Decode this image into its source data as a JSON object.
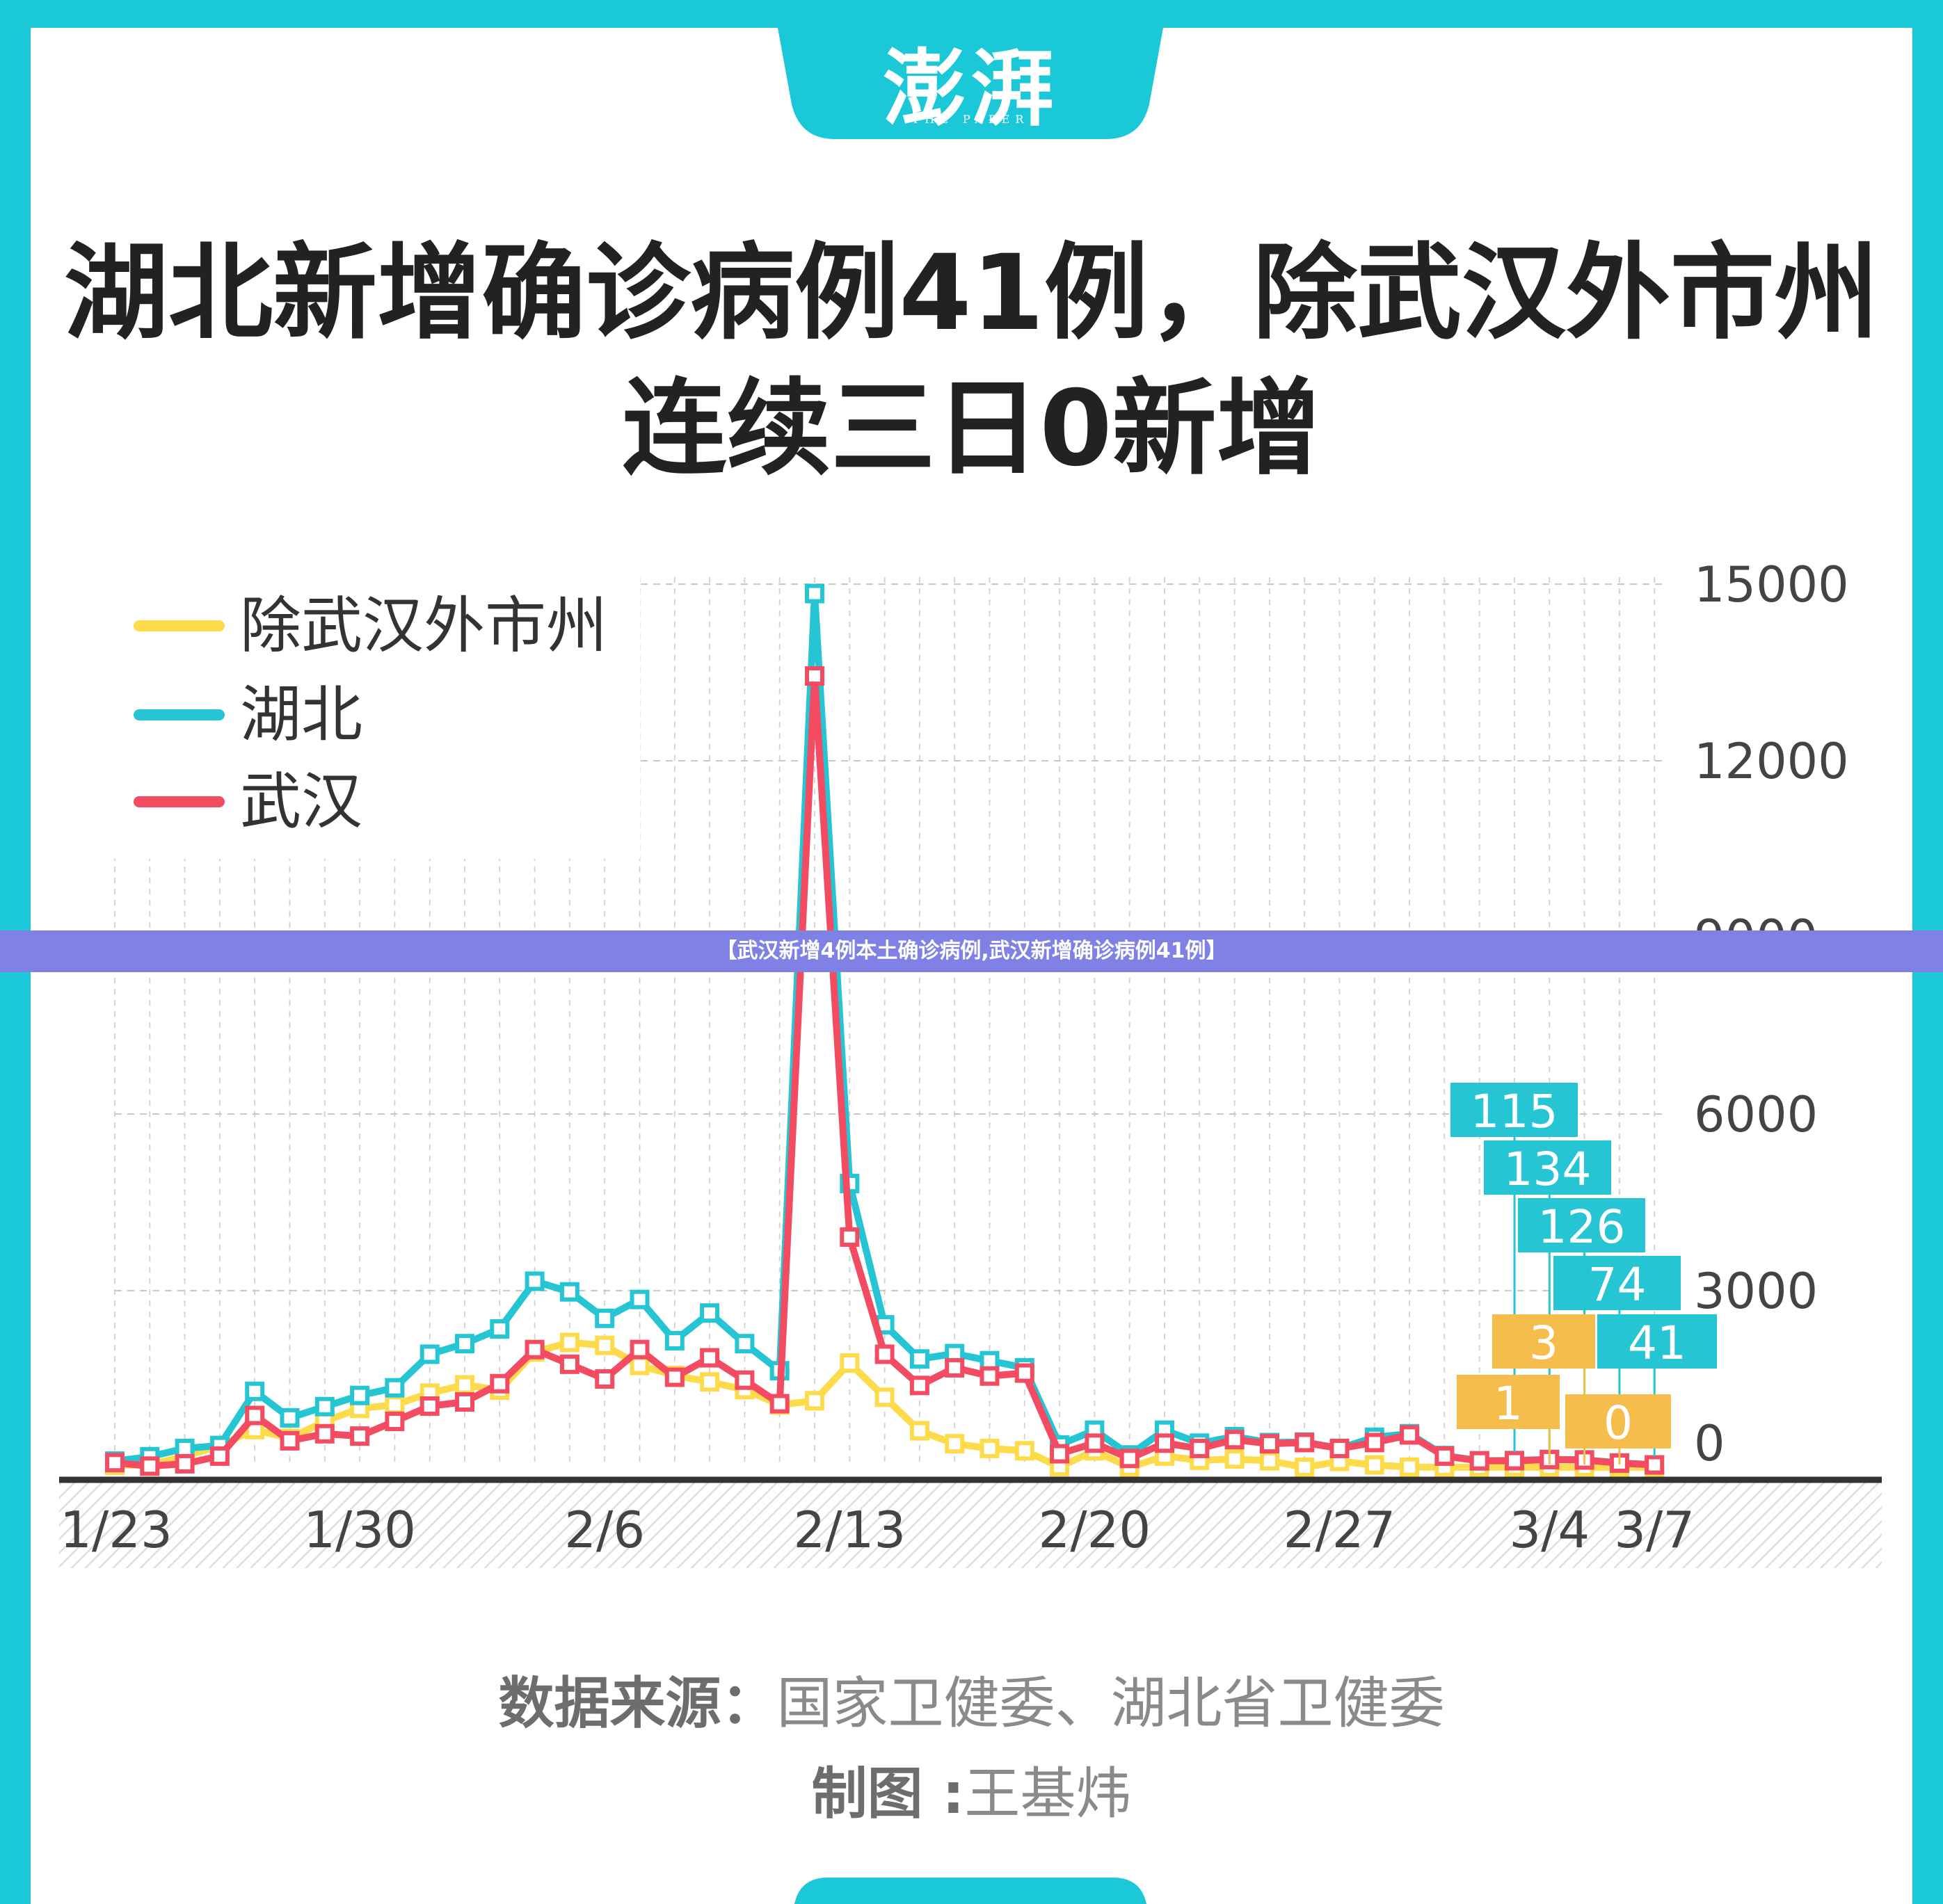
{
  "logo": {
    "name": "澎湃",
    "sub": "THE PAPER"
  },
  "title": {
    "line1": "湖北新增确诊病例41例，除武汉外市州",
    "line2": "连续三日0新增"
  },
  "banner": "【武汉新增4例本土确诊病例,武汉新增确诊病例41例】",
  "source": {
    "label": "数据来源：",
    "value": "国家卫健委、湖北省卫健委"
  },
  "credit": {
    "label": "制图 :",
    "value": "王基炜"
  },
  "colors": {
    "brand": "#1ac8d8",
    "hubei": "#25c5d3",
    "wuhan": "#f24b62",
    "others": "#fddb4a",
    "label_gold": "#f5be4c"
  },
  "chart_data": {
    "type": "line",
    "x": [
      "1/23",
      "1/24",
      "1/25",
      "1/26",
      "1/27",
      "1/28",
      "1/29",
      "1/30",
      "1/31",
      "2/1",
      "2/2",
      "2/3",
      "2/4",
      "2/5",
      "2/6",
      "2/7",
      "2/8",
      "2/9",
      "2/10",
      "2/11",
      "2/12",
      "2/13",
      "2/14",
      "2/15",
      "2/16",
      "2/17",
      "2/18",
      "2/19",
      "2/20",
      "2/21",
      "2/22",
      "2/23",
      "2/24",
      "2/25",
      "2/26",
      "2/27",
      "2/28",
      "2/29",
      "3/1",
      "3/2",
      "3/3",
      "3/4",
      "3/5",
      "3/6",
      "3/7"
    ],
    "xticks": [
      "1/23",
      "1/30",
      "2/6",
      "2/13",
      "2/20",
      "2/27",
      "3/4",
      "3/7"
    ],
    "yticks": [
      "0",
      "3000",
      "6000",
      "9000",
      "12000",
      "15000"
    ],
    "ylim": [
      0,
      15000
    ],
    "grid": true,
    "legend": "top-left",
    "series": [
      {
        "name": "除武汉外市州",
        "color": "others",
        "values": [
          35,
          40,
          190,
          370,
          640,
          490,
          780,
          1000,
          1060,
          1260,
          1400,
          1310,
          1960,
          2120,
          2070,
          1730,
          1560,
          1450,
          1320,
          1060,
          1130,
          1770,
          1190,
          620,
          400,
          320,
          280,
          10,
          280,
          0,
          190,
          120,
          140,
          110,
          0,
          100,
          40,
          3,
          1,
          1,
          3,
          1,
          0,
          0,
          0
        ]
      },
      {
        "name": "湖北",
        "color": "hubei",
        "values": [
          105,
          180,
          320,
          370,
          1290,
          840,
          1030,
          1220,
          1350,
          1920,
          2100,
          2350,
          3160,
          2980,
          2530,
          2850,
          2150,
          2620,
          2100,
          1640,
          14840,
          4820,
          2420,
          1840,
          1930,
          1810,
          1690,
          380,
          630,
          210,
          630,
          410,
          520,
          420,
          430,
          320,
          510,
          570,
          200,
          110,
          115,
          134,
          126,
          74,
          41
        ]
      },
      {
        "name": "武汉",
        "color": "wuhan",
        "values": [
          80,
          20,
          60,
          190,
          880,
          450,
          570,
          530,
          780,
          1040,
          1110,
          1420,
          2000,
          1750,
          1500,
          2000,
          1530,
          1860,
          1480,
          1080,
          13440,
          3910,
          1920,
          1390,
          1690,
          1550,
          1600,
          230,
          410,
          150,
          410,
          320,
          470,
          400,
          420,
          320,
          420,
          550,
          190,
          110,
          111,
          131,
          124,
          71,
          41
        ]
      }
    ],
    "annotations": {
      "hubei_last5": [
        "115",
        "134",
        "126",
        "74",
        "41"
      ],
      "others_last5": [
        "3",
        "1",
        "0"
      ]
    }
  }
}
